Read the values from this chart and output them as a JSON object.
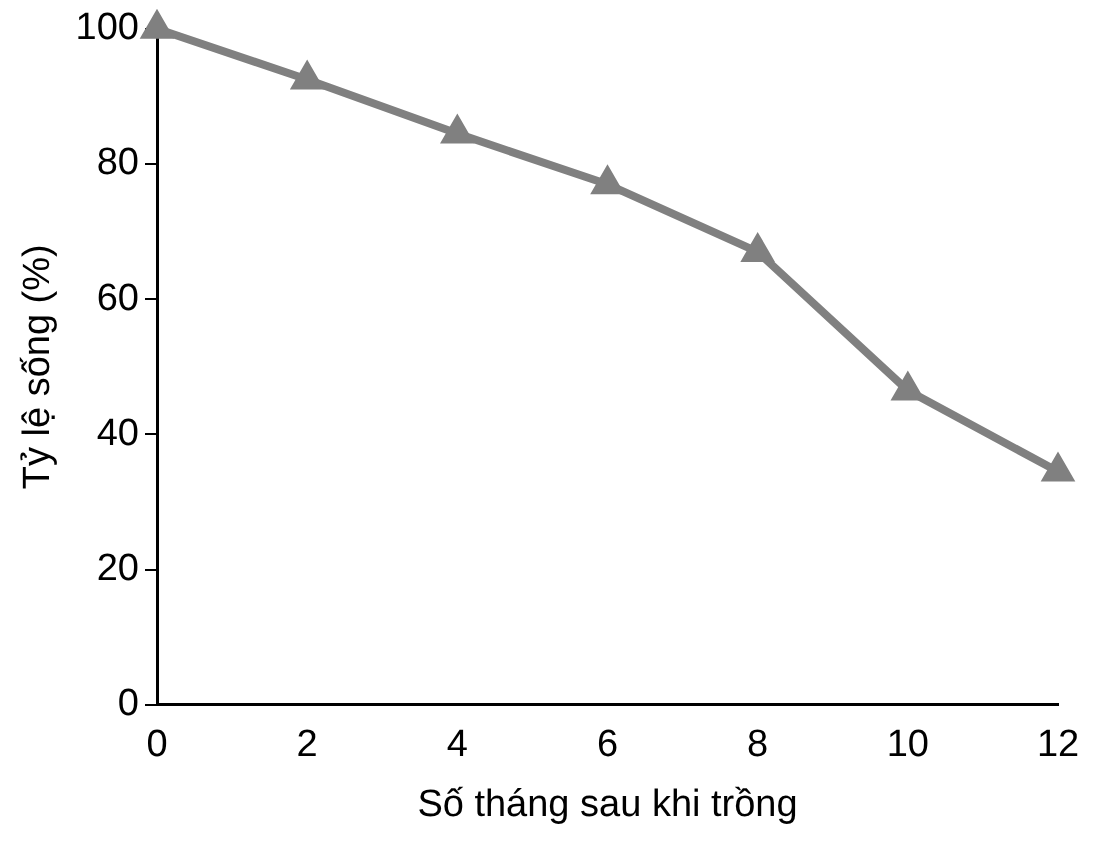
{
  "chart_data": {
    "type": "line",
    "xlabel": "Số tháng sau khi trồng",
    "ylabel": "Tỷ lệ sống (%)",
    "x": [
      0,
      2,
      4,
      6,
      8,
      10,
      12
    ],
    "series": [
      {
        "color": "#808080",
        "values": [
          100,
          92.5,
          84.5,
          77,
          67,
          46.5,
          34.5
        ]
      }
    ],
    "xlim": [
      0,
      12
    ],
    "xticks": [
      0,
      2,
      4,
      6,
      8,
      10,
      12
    ],
    "ylim": [
      0,
      100
    ],
    "yticks": [
      0,
      20,
      40,
      60,
      80,
      100
    ],
    "grid": false,
    "legend": false,
    "marker": "triangle",
    "line_style": "solid"
  }
}
